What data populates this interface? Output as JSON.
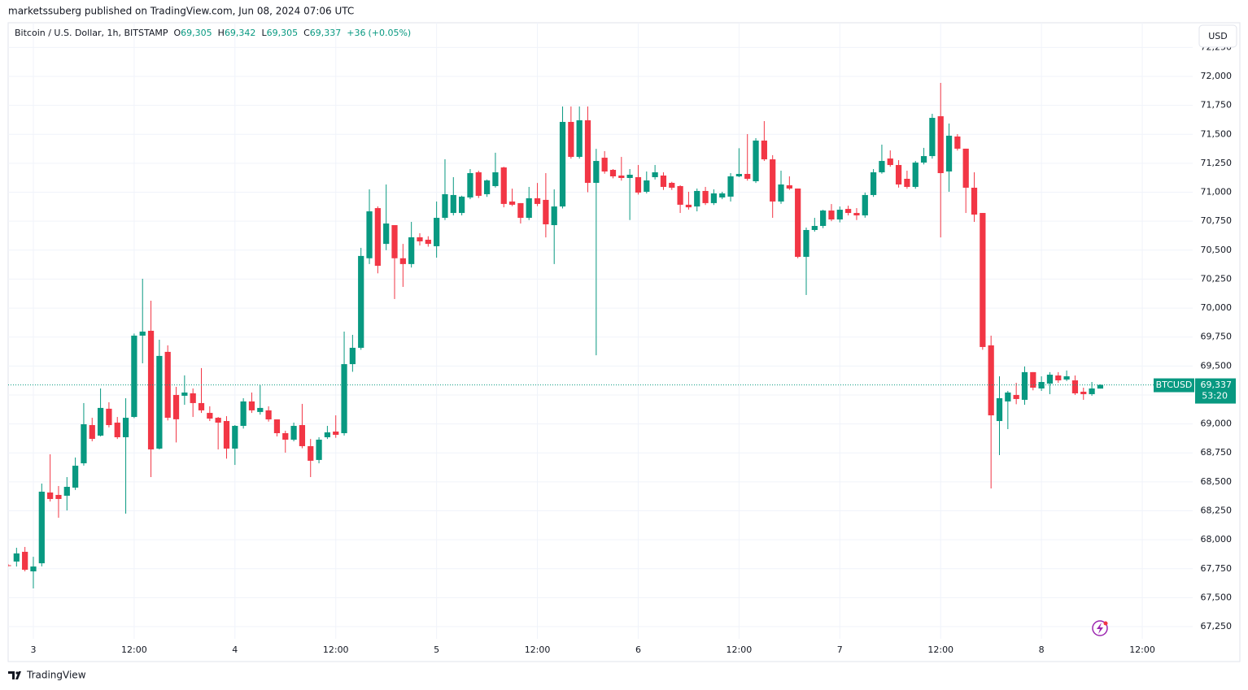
{
  "header": {
    "publisher_line": "marketssuberg published on TradingView.com, Jun 08, 2024 07:06 UTC",
    "currency_button": "USD",
    "footer_brand": "TradingView"
  },
  "quote": {
    "symbol_line": "Bitcoin / U.S. Dollar, 1h, BITSTAMP",
    "labels": [
      "O",
      "H",
      "L",
      "C"
    ],
    "values": [
      69305,
      69342,
      69305,
      69337
    ],
    "value_labels": [
      "69,305",
      "69,342",
      "69,305",
      "69,337"
    ],
    "change": 36,
    "change_label": "+36",
    "change_pct": 0.05,
    "change_pct_label": "(+0.05%)"
  },
  "chart_data": {
    "type": "candlestick",
    "symbol": "BTCUSD",
    "colors": {
      "up": "#089981",
      "down": "#f23645"
    },
    "last_price": 69337,
    "last_price_label": "69,337",
    "countdown": "53:20",
    "xlim": [
      "2024-06-02T21:00",
      "2024-06-08T18:00"
    ],
    "xticks": [
      {
        "value": "2024-06-03T00:00",
        "label": "3"
      },
      {
        "value": "2024-06-03T12:00",
        "label": "12:00"
      },
      {
        "value": "2024-06-04T00:00",
        "label": "4"
      },
      {
        "value": "2024-06-04T12:00",
        "label": "12:00"
      },
      {
        "value": "2024-06-05T00:00",
        "label": "5"
      },
      {
        "value": "2024-06-05T12:00",
        "label": "12:00"
      },
      {
        "value": "2024-06-06T00:00",
        "label": "6"
      },
      {
        "value": "2024-06-06T12:00",
        "label": "12:00"
      },
      {
        "value": "2024-06-07T00:00",
        "label": "7"
      },
      {
        "value": "2024-06-07T12:00",
        "label": "12:00"
      },
      {
        "value": "2024-06-08T00:00",
        "label": "8"
      },
      {
        "value": "2024-06-08T12:00",
        "label": "12:00"
      }
    ],
    "ylim": [
      67145,
      72463
    ],
    "yticks": [
      {
        "value": 67250,
        "label": "67,250"
      },
      {
        "value": 67500,
        "label": "67,500"
      },
      {
        "value": 67750,
        "label": "67,750"
      },
      {
        "value": 68000,
        "label": "68,000"
      },
      {
        "value": 68250,
        "label": "68,250"
      },
      {
        "value": 68500,
        "label": "68,500"
      },
      {
        "value": 68750,
        "label": "68,750"
      },
      {
        "value": 69000,
        "label": "69,000"
      },
      {
        "value": 69250,
        "label": "69,250"
      },
      {
        "value": 69500,
        "label": "69,500"
      },
      {
        "value": 69750,
        "label": "69,750"
      },
      {
        "value": 70000,
        "label": "70,000"
      },
      {
        "value": 70250,
        "label": "70,250"
      },
      {
        "value": 70500,
        "label": "70,500"
      },
      {
        "value": 70750,
        "label": "70,750"
      },
      {
        "value": 71000,
        "label": "71,000"
      },
      {
        "value": 71250,
        "label": "71,250"
      },
      {
        "value": 71500,
        "label": "71,500"
      },
      {
        "value": 71750,
        "label": "71,750"
      },
      {
        "value": 72000,
        "label": "72,000"
      },
      {
        "value": 72250,
        "label": "72,250"
      }
    ],
    "grid": true,
    "x": [
      "2024-06-02T21:00",
      "2024-06-02T22:00",
      "2024-06-02T23:00",
      "2024-06-03T00:00",
      "2024-06-03T01:00",
      "2024-06-03T02:00",
      "2024-06-03T03:00",
      "2024-06-03T04:00",
      "2024-06-03T05:00",
      "2024-06-03T06:00",
      "2024-06-03T07:00",
      "2024-06-03T08:00",
      "2024-06-03T09:00",
      "2024-06-03T10:00",
      "2024-06-03T11:00",
      "2024-06-03T12:00",
      "2024-06-03T13:00",
      "2024-06-03T14:00",
      "2024-06-03T15:00",
      "2024-06-03T16:00",
      "2024-06-03T17:00",
      "2024-06-03T18:00",
      "2024-06-03T19:00",
      "2024-06-03T20:00",
      "2024-06-03T21:00",
      "2024-06-03T22:00",
      "2024-06-03T23:00",
      "2024-06-04T00:00",
      "2024-06-04T01:00",
      "2024-06-04T02:00",
      "2024-06-04T03:00",
      "2024-06-04T04:00",
      "2024-06-04T05:00",
      "2024-06-04T06:00",
      "2024-06-04T07:00",
      "2024-06-04T08:00",
      "2024-06-04T09:00",
      "2024-06-04T10:00",
      "2024-06-04T11:00",
      "2024-06-04T12:00",
      "2024-06-04T13:00",
      "2024-06-04T14:00",
      "2024-06-04T15:00",
      "2024-06-04T16:00",
      "2024-06-04T17:00",
      "2024-06-04T18:00",
      "2024-06-04T19:00",
      "2024-06-04T20:00",
      "2024-06-04T21:00",
      "2024-06-04T22:00",
      "2024-06-04T23:00",
      "2024-06-05T00:00",
      "2024-06-05T01:00",
      "2024-06-05T02:00",
      "2024-06-05T03:00",
      "2024-06-05T04:00",
      "2024-06-05T05:00",
      "2024-06-05T06:00",
      "2024-06-05T07:00",
      "2024-06-05T08:00",
      "2024-06-05T09:00",
      "2024-06-05T10:00",
      "2024-06-05T11:00",
      "2024-06-05T12:00",
      "2024-06-05T13:00",
      "2024-06-05T14:00",
      "2024-06-05T15:00",
      "2024-06-05T16:00",
      "2024-06-05T17:00",
      "2024-06-05T18:00",
      "2024-06-05T19:00",
      "2024-06-05T20:00",
      "2024-06-05T21:00",
      "2024-06-05T22:00",
      "2024-06-05T23:00",
      "2024-06-06T00:00",
      "2024-06-06T01:00",
      "2024-06-06T02:00",
      "2024-06-06T03:00",
      "2024-06-06T04:00",
      "2024-06-06T05:00",
      "2024-06-06T06:00",
      "2024-06-06T07:00",
      "2024-06-06T08:00",
      "2024-06-06T09:00",
      "2024-06-06T10:00",
      "2024-06-06T11:00",
      "2024-06-06T12:00",
      "2024-06-06T13:00",
      "2024-06-06T14:00",
      "2024-06-06T15:00",
      "2024-06-06T16:00",
      "2024-06-06T17:00",
      "2024-06-06T18:00",
      "2024-06-06T19:00",
      "2024-06-06T20:00",
      "2024-06-06T21:00",
      "2024-06-06T22:00",
      "2024-06-06T23:00",
      "2024-06-07T00:00",
      "2024-06-07T01:00",
      "2024-06-07T02:00",
      "2024-06-07T03:00",
      "2024-06-07T04:00",
      "2024-06-07T05:00",
      "2024-06-07T06:00",
      "2024-06-07T07:00",
      "2024-06-07T08:00",
      "2024-06-07T09:00",
      "2024-06-07T10:00",
      "2024-06-07T11:00",
      "2024-06-07T12:00",
      "2024-06-07T13:00",
      "2024-06-07T14:00",
      "2024-06-07T15:00",
      "2024-06-07T16:00",
      "2024-06-07T17:00",
      "2024-06-07T18:00",
      "2024-06-07T19:00",
      "2024-06-07T20:00",
      "2024-06-07T21:00",
      "2024-06-07T22:00",
      "2024-06-07T23:00",
      "2024-06-08T00:00",
      "2024-06-08T01:00",
      "2024-06-08T02:00",
      "2024-06-08T03:00",
      "2024-06-08T04:00",
      "2024-06-08T05:00",
      "2024-06-08T06:00",
      "2024-06-08T07:00"
    ],
    "ohlc": [
      [
        67780,
        67790,
        67770,
        67775
      ],
      [
        67812,
        67931,
        67769,
        67882
      ],
      [
        67896,
        67938,
        67727,
        67741
      ],
      [
        67727,
        67853,
        67580,
        67769
      ],
      [
        67797,
        68485,
        67770,
        68415
      ],
      [
        68408,
        68738,
        68330,
        68352
      ],
      [
        68387,
        68464,
        68190,
        68352
      ],
      [
        68380,
        68541,
        68253,
        68457
      ],
      [
        68450,
        68710,
        68430,
        68639
      ],
      [
        68660,
        69180,
        68640,
        68997
      ],
      [
        68990,
        69053,
        68850,
        68871
      ],
      [
        68899,
        69306,
        68892,
        69138
      ],
      [
        69131,
        69187,
        68970,
        68990
      ],
      [
        69011,
        69060,
        68870,
        68885
      ],
      [
        68885,
        69222,
        68225,
        69053
      ],
      [
        69060,
        69780,
        69050,
        69762
      ],
      [
        69762,
        70253,
        69523,
        69797
      ],
      [
        69804,
        70064,
        68541,
        68780
      ],
      [
        68787,
        69727,
        68780,
        69587
      ],
      [
        69622,
        69678,
        69030,
        69053
      ],
      [
        69250,
        69320,
        68840,
        69040
      ],
      [
        69243,
        69419,
        69165,
        69271
      ],
      [
        69264,
        69306,
        69060,
        69180
      ],
      [
        69180,
        69482,
        69095,
        69117
      ],
      [
        69095,
        69152,
        69025,
        69046
      ],
      [
        69053,
        69060,
        68780,
        69011
      ],
      [
        69025,
        69067,
        68700,
        68787
      ],
      [
        68787,
        68990,
        68646,
        68983
      ],
      [
        68983,
        69222,
        68960,
        69194
      ],
      [
        69194,
        69271,
        69095,
        69117
      ],
      [
        69103,
        69334,
        69080,
        69138
      ],
      [
        69117,
        69152,
        69020,
        69039
      ],
      [
        69039,
        69039,
        68892,
        68920
      ],
      [
        68920,
        68941,
        68752,
        68864
      ],
      [
        68864,
        69011,
        68850,
        68983
      ],
      [
        68990,
        69173,
        68790,
        68808
      ],
      [
        68808,
        68870,
        68541,
        68682
      ],
      [
        68689,
        68885,
        68660,
        68864
      ],
      [
        68885,
        68983,
        68870,
        68927
      ],
      [
        68934,
        69074,
        68880,
        68906
      ],
      [
        68920,
        69797,
        68900,
        69516
      ],
      [
        69516,
        69769,
        69450,
        69657
      ],
      [
        69657,
        70520,
        69640,
        70450
      ],
      [
        70430,
        71025,
        70380,
        70835
      ],
      [
        70863,
        70878,
        70300,
        70365
      ],
      [
        70554,
        71067,
        70500,
        70730
      ],
      [
        70716,
        70716,
        70078,
        70430
      ],
      [
        70430,
        70554,
        70183,
        70380
      ],
      [
        70380,
        70744,
        70350,
        70611
      ],
      [
        70611,
        70646,
        70540,
        70576
      ],
      [
        70590,
        70620,
        70530,
        70554
      ],
      [
        70534,
        70920,
        70435,
        70779
      ],
      [
        70779,
        71285,
        70760,
        70983
      ],
      [
        70821,
        71130,
        70800,
        70976
      ],
      [
        70821,
        70970,
        70800,
        70962
      ],
      [
        70955,
        71200,
        70940,
        71165
      ],
      [
        71172,
        71186,
        70950,
        70969
      ],
      [
        70983,
        71110,
        70960,
        71102
      ],
      [
        71053,
        71341,
        71040,
        71172
      ],
      [
        71214,
        71220,
        70870,
        70899
      ],
      [
        70920,
        71031,
        70880,
        70892
      ],
      [
        70906,
        70906,
        70730,
        70779
      ],
      [
        70779,
        71046,
        70760,
        70948
      ],
      [
        70948,
        71080,
        70880,
        70899
      ],
      [
        70934,
        71165,
        70610,
        70723
      ],
      [
        70716,
        71025,
        70380,
        70877
      ],
      [
        70877,
        71740,
        70860,
        71607
      ],
      [
        71607,
        71740,
        71290,
        71305
      ],
      [
        71305,
        71740,
        71290,
        71621
      ],
      [
        71621,
        71740,
        71000,
        71081
      ],
      [
        71081,
        71375,
        69593,
        71270
      ],
      [
        71298,
        71355,
        71160,
        71179
      ],
      [
        71193,
        71200,
        71120,
        71137
      ],
      [
        71144,
        71305,
        71100,
        71123
      ],
      [
        71123,
        71200,
        70760,
        71151
      ],
      [
        71130,
        71235,
        70980,
        70997
      ],
      [
        71004,
        71179,
        70990,
        71102
      ],
      [
        71130,
        71235,
        71110,
        71172
      ],
      [
        71144,
        71172,
        71020,
        71046
      ],
      [
        71081,
        71090,
        71020,
        71039
      ],
      [
        71053,
        71060,
        70821,
        70892
      ],
      [
        70892,
        71004,
        70850,
        70870
      ],
      [
        70877,
        71032,
        70835,
        71011
      ],
      [
        71011,
        71046,
        70890,
        70906
      ],
      [
        70906,
        71025,
        70890,
        70990
      ],
      [
        70955,
        71004,
        70940,
        70990
      ],
      [
        70962,
        71165,
        70920,
        71137
      ],
      [
        71137,
        71380,
        71130,
        71158
      ],
      [
        71158,
        71502,
        71100,
        71116
      ],
      [
        71095,
        71467,
        71080,
        71446
      ],
      [
        71446,
        71614,
        71270,
        71284
      ],
      [
        71284,
        71320,
        70779,
        70920
      ],
      [
        70920,
        71186,
        70900,
        71067
      ],
      [
        71060,
        71137,
        71020,
        71032
      ],
      [
        71032,
        71032,
        70430,
        70442
      ],
      [
        70442,
        70695,
        70113,
        70674
      ],
      [
        70674,
        70779,
        70660,
        70709
      ],
      [
        70709,
        70849,
        70690,
        70842
      ],
      [
        70842,
        70898,
        70750,
        70765
      ],
      [
        70765,
        70877,
        70740,
        70849
      ],
      [
        70856,
        70884,
        70800,
        70821
      ],
      [
        70821,
        70863,
        70760,
        70800
      ],
      [
        70800,
        70997,
        70780,
        70976
      ],
      [
        70976,
        71200,
        70960,
        71172
      ],
      [
        71172,
        71411,
        71160,
        71270
      ],
      [
        71291,
        71361,
        71220,
        71235
      ],
      [
        71235,
        71277,
        71040,
        71067
      ],
      [
        71116,
        71186,
        71030,
        71046
      ],
      [
        71046,
        71270,
        71030,
        71256
      ],
      [
        71256,
        71383,
        71240,
        71312
      ],
      [
        71312,
        71677,
        71290,
        71642
      ],
      [
        71656,
        71944,
        70610,
        71165
      ],
      [
        71179,
        71593,
        71004,
        71488
      ],
      [
        71481,
        71502,
        71360,
        71376
      ],
      [
        71376,
        71376,
        70821,
        71039
      ],
      [
        71039,
        71172,
        70744,
        70807
      ],
      [
        70821,
        70821,
        69640,
        69664
      ],
      [
        69678,
        69762,
        68443,
        69074
      ],
      [
        69025,
        69411,
        68731,
        69222
      ],
      [
        69194,
        69285,
        68955,
        69271
      ],
      [
        69250,
        69355,
        69170,
        69215
      ],
      [
        69208,
        69496,
        69165,
        69447
      ],
      [
        69447,
        69447,
        69290,
        69313
      ],
      [
        69306,
        69411,
        69285,
        69362
      ],
      [
        69348,
        69447,
        69257,
        69425
      ],
      [
        69418,
        69447,
        69355,
        69376
      ],
      [
        69383,
        69461,
        69370,
        69411
      ],
      [
        69376,
        69418,
        69250,
        69264
      ],
      [
        69278,
        69313,
        69208,
        69257
      ],
      [
        69257,
        69362,
        69243,
        69306
      ],
      [
        69305,
        69342,
        69305,
        69337
      ]
    ]
  }
}
